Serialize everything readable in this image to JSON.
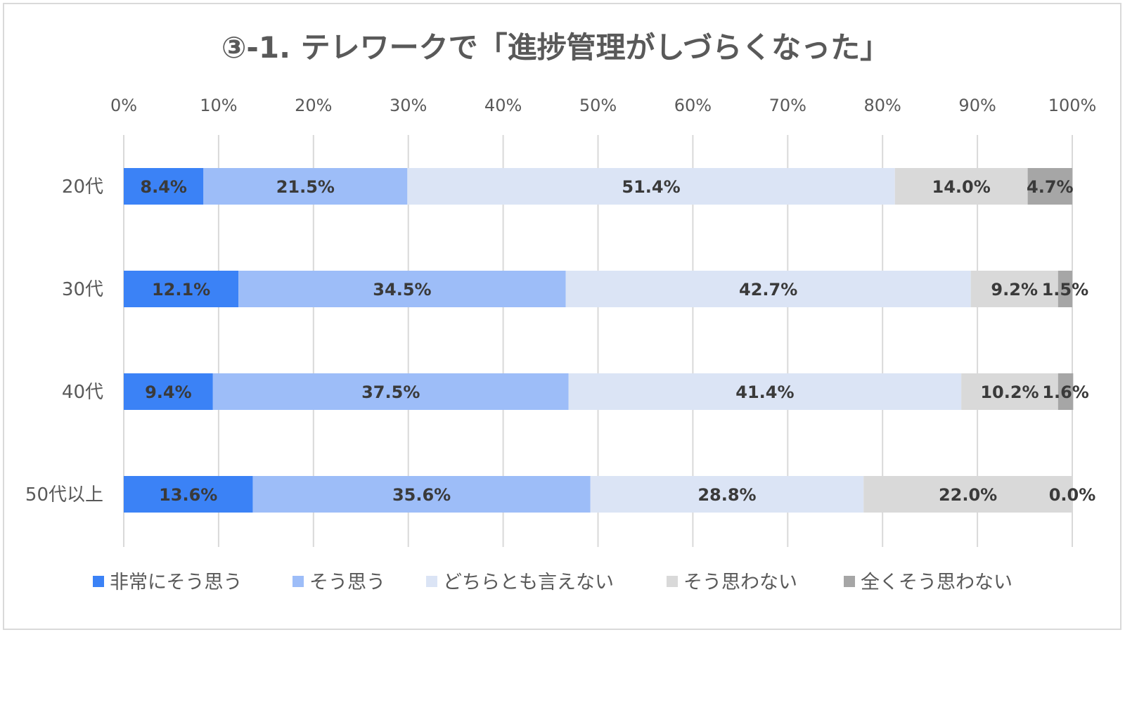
{
  "chart_data": {
    "type": "bar",
    "orientation": "horizontal",
    "stacked": "percent",
    "title": "③-1. テレワークで「進捗管理がしづらくなった」",
    "categories": [
      "20代",
      "30代",
      "40代",
      "50代以上"
    ],
    "x_ticks": [
      "0%",
      "10%",
      "20%",
      "30%",
      "40%",
      "50%",
      "60%",
      "70%",
      "80%",
      "90%",
      "100%"
    ],
    "xlim": [
      0,
      100
    ],
    "xaxis_position": "top",
    "grid": true,
    "legend_position": "bottom",
    "series": [
      {
        "name": "非常にそう思う",
        "color": "#3b82f6",
        "values": [
          8.4,
          12.1,
          9.4,
          13.6
        ],
        "labels": [
          "8.4%",
          "12.1%",
          "9.4%",
          "13.6%"
        ]
      },
      {
        "name": "そう思う",
        "color": "#9dbdf8",
        "values": [
          21.5,
          34.5,
          37.5,
          35.6
        ],
        "labels": [
          "21.5%",
          "34.5%",
          "37.5%",
          "35.6%"
        ]
      },
      {
        "name": "どちらとも言えない",
        "color": "#dbe4f5",
        "values": [
          51.4,
          42.7,
          41.4,
          28.8
        ],
        "labels": [
          "51.4%",
          "42.7%",
          "41.4%",
          "28.8%"
        ]
      },
      {
        "name": "そう思わない",
        "color": "#d9d9d9",
        "values": [
          14.0,
          9.2,
          10.2,
          22.0
        ],
        "labels": [
          "14.0%",
          "9.2%",
          "10.2%",
          "22.0%"
        ]
      },
      {
        "name": "全くそう思わない",
        "color": "#a6a6a6",
        "values": [
          4.7,
          1.5,
          1.6,
          0.0
        ],
        "labels": [
          "4.7%",
          "1.5%",
          "1.6%",
          "0.0%"
        ]
      }
    ]
  }
}
